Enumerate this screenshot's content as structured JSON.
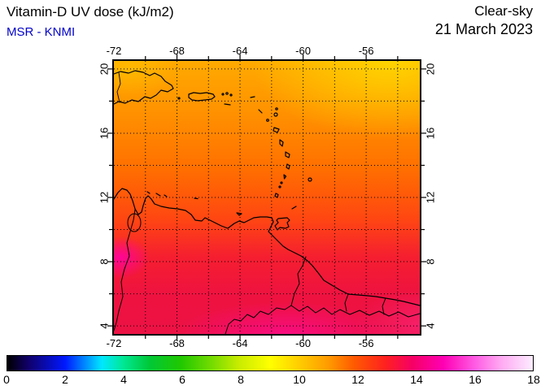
{
  "header": {
    "title": "Vitamin-D UV dose (kJ/m2)",
    "source": "MSR - KNMI",
    "condition": "Clear-sky",
    "date": "21 March 2023"
  },
  "map": {
    "lon_range": [
      -72,
      -52.6
    ],
    "lat_range": [
      3.5,
      20.5
    ],
    "grid_step_deg": 2,
    "lon_label_values": [
      -72,
      -68,
      -64,
      -60,
      -56
    ],
    "lon_labels": [
      "-72",
      "-68",
      "-64",
      "-60",
      "-56"
    ],
    "lat_label_values": [
      20,
      16,
      12,
      8,
      4
    ],
    "lat_labels": [
      "20",
      "16",
      "12",
      "8",
      "4"
    ],
    "region": "Caribbean and northern South America",
    "coastline_color": "#000000",
    "grid_color": "#000000"
  },
  "field": {
    "description": "Clear-sky vitamin-D UV dose, ~10-11 kJ/m2 (orange/yellow) in the north grading to ~13-14 kJ/m2 (red/magenta) in the south",
    "base_positions": [
      0,
      20,
      40,
      58,
      72,
      86,
      100
    ],
    "base_stops": [
      "#ffaa00",
      "#ff9000",
      "#ff6e00",
      "#ff4612",
      "#f51e30",
      "#ee1240",
      "#ec1244"
    ],
    "accents": {
      "top_right_yellow": "#ffd800",
      "top_left_yellow": "#ffc400",
      "left_magenta": "#ff00aa",
      "bottom_magenta": "#ff0aa0",
      "bottom_right_pink": "#ff2a88"
    }
  },
  "colorbar": {
    "min": 0,
    "max": 18,
    "units": "kJ/m2",
    "tick_values": [
      0,
      2,
      4,
      6,
      8,
      10,
      12,
      14,
      16,
      18
    ],
    "tick_labels": [
      "0",
      "2",
      "4",
      "6",
      "8",
      "10",
      "12",
      "14",
      "16",
      "18"
    ],
    "stop_positions": [
      0,
      4,
      11,
      15,
      18,
      22,
      27,
      33,
      39,
      44,
      50,
      55,
      61,
      66,
      72,
      77,
      83,
      89,
      94,
      100
    ],
    "stop_colors": [
      "#000000",
      "#10006a",
      "#0018ff",
      "#0090ff",
      "#00e8ff",
      "#00e896",
      "#00c837",
      "#20c800",
      "#76dc00",
      "#c8ec00",
      "#ffff00",
      "#ffd200",
      "#ff9c00",
      "#ff5a00",
      "#ff2020",
      "#f60064",
      "#ff00b4",
      "#ff5ce4",
      "#ffaaf2",
      "#fcecff"
    ]
  }
}
